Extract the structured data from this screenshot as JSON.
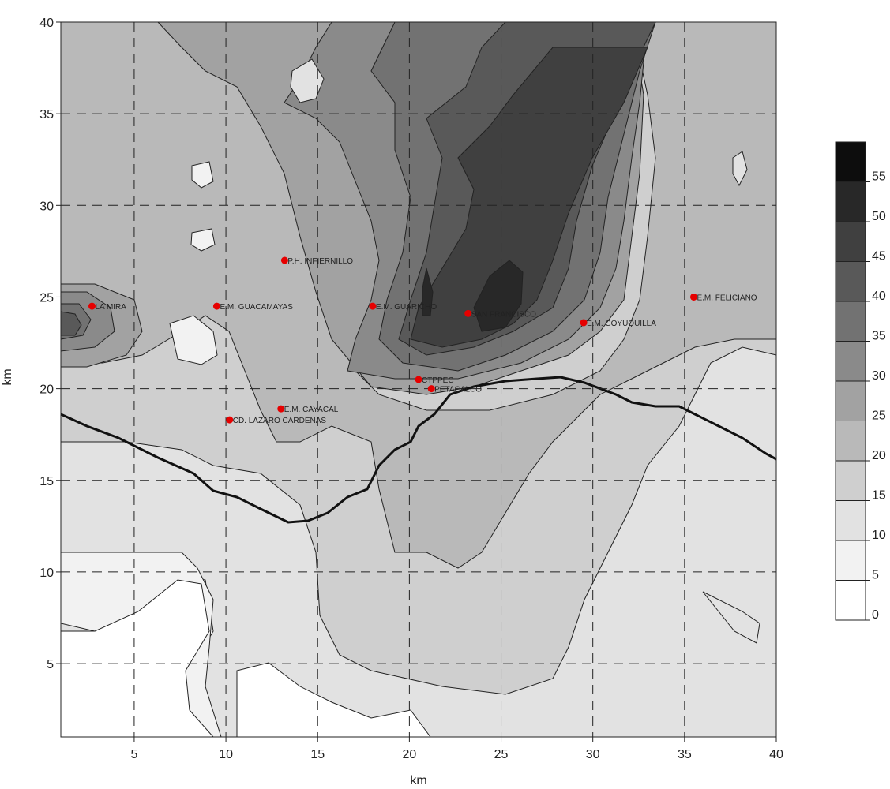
{
  "chart_data": {
    "type": "contour",
    "xlabel": "km",
    "ylabel": "km",
    "xlim": [
      1,
      40
    ],
    "ylim": [
      1,
      40
    ],
    "x_ticks": [
      5,
      10,
      15,
      20,
      25,
      30,
      35,
      40
    ],
    "y_ticks": [
      5,
      10,
      15,
      20,
      25,
      30,
      35,
      40
    ],
    "grid": "dashed",
    "color_scale": {
      "labels": [
        "55",
        "50",
        "45",
        "40",
        "35",
        "30",
        "25",
        "20",
        "15",
        "10",
        "5",
        "0"
      ],
      "levels": [
        0,
        5,
        10,
        15,
        20,
        25,
        30,
        35,
        40,
        45,
        50,
        55
      ],
      "colors": [
        "#ffffff",
        "#f2f2f2",
        "#e2e2e2",
        "#cfcfcf",
        "#b9b9b9",
        "#a2a2a2",
        "#8a8a8a",
        "#727272",
        "#595959",
        "#404040",
        "#282828",
        "#0d0d0d"
      ]
    },
    "stations": [
      {
        "name": "LA MIRA",
        "x": 2.7,
        "y": 24.5
      },
      {
        "name": "E.M. GUACAMAYAS",
        "x": 9.5,
        "y": 24.5
      },
      {
        "name": "P.H. INFIERNILLO",
        "x": 13.2,
        "y": 27.0
      },
      {
        "name": "E.M. GUARICHO",
        "x": 18.0,
        "y": 24.5
      },
      {
        "name": "SAN FRANCISCO",
        "x": 23.2,
        "y": 24.1
      },
      {
        "name": "E.M. COYUQUILLA",
        "x": 29.5,
        "y": 23.6
      },
      {
        "name": "E.M. FELICIANO",
        "x": 35.5,
        "y": 25.0
      },
      {
        "name": "CTPPEC",
        "x": 20.5,
        "y": 20.5
      },
      {
        "name": "PETACALCO",
        "x": 21.2,
        "y": 20.0
      },
      {
        "name": "E.M. CAYACAL",
        "x": 13.0,
        "y": 18.9
      },
      {
        "name": "CD. LAZARO CARDENAS",
        "x": 10.2,
        "y": 18.3
      }
    ],
    "station_color": "#e60000"
  }
}
